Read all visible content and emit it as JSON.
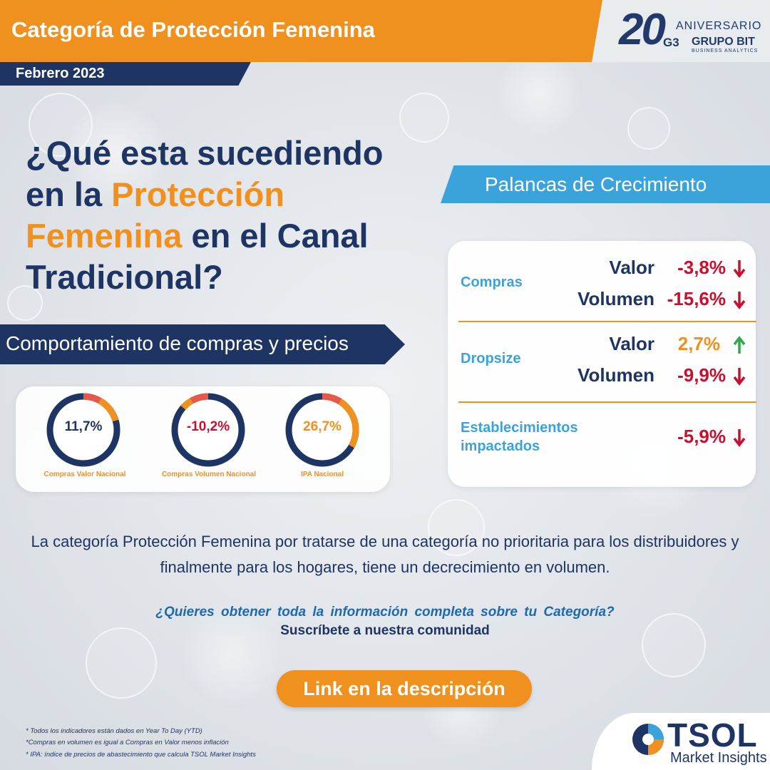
{
  "header": {
    "title": "Categoría de Protección Femenina",
    "date": "Febrero 2023"
  },
  "brand_logo": {
    "number": "20",
    "aniversario": "ANIVERSARIO",
    "mark": "G3",
    "name": "GRUPO BIT",
    "tagline": "BUSINESS ANALYTICS"
  },
  "main_title": {
    "part1": "¿Qué esta sucediendo en la ",
    "highlight": "Protección Femenina",
    "part2": " en el Canal Tradicional?"
  },
  "comportamiento": {
    "title": "Comportamiento de compras y precios",
    "indicators": [
      {
        "value": "11,7%",
        "label": "Compras Valor Nacional",
        "color": "#1e3564"
      },
      {
        "value": "-10,2%",
        "label": "Compras Volumen Nacional",
        "color": "#c8102e"
      },
      {
        "value": "26,7%",
        "label": "IPA Nacional",
        "color": "#f0901e"
      }
    ]
  },
  "palancas": {
    "title": "Palancas de Crecimiento",
    "groups": [
      {
        "name": "Compras",
        "rows": [
          {
            "metric": "Valor",
            "value": "-3,8%",
            "trend": "down"
          },
          {
            "metric": "Volumen",
            "value": "-15,6%",
            "trend": "down"
          }
        ]
      },
      {
        "name": "Dropsize",
        "rows": [
          {
            "metric": "Valor",
            "value": "2,7%",
            "trend": "up"
          },
          {
            "metric": "Volumen",
            "value": "-9,9%",
            "trend": "down"
          }
        ]
      },
      {
        "name_line1": "Establecimientos",
        "name_line2": "impactados",
        "rows": [
          {
            "metric": "",
            "value": "-5,9%",
            "trend": "down"
          }
        ]
      }
    ]
  },
  "body_text": "La categoría Protección Femenina por tratarse de una categoría no prioritaria para los distribuidores y finalmente para los hogares, tiene un decrecimiento en volumen.",
  "cta": {
    "question": "¿Quieres obtener toda la información completa sobre tu Categoría?",
    "subscribe": "Suscríbete a nuestra comunidad",
    "button": "Link en la descripción"
  },
  "footnotes": [
    "* Todos los indicadores están dados en Year To Day (YTD)",
    "*Compras en volumen es igual a Compras en Valor menos inflación",
    "* IPA: índice de precios de abastecimiento que calcula TSOL Market Insights"
  ],
  "tsol_logo": {
    "name": "TSOL",
    "tagline": "Market Insights"
  },
  "colors": {
    "orange": "#f0901e",
    "navy": "#1e3564",
    "sky": "#3aa3dc",
    "red": "#c8102e",
    "green": "#2fa84f"
  }
}
